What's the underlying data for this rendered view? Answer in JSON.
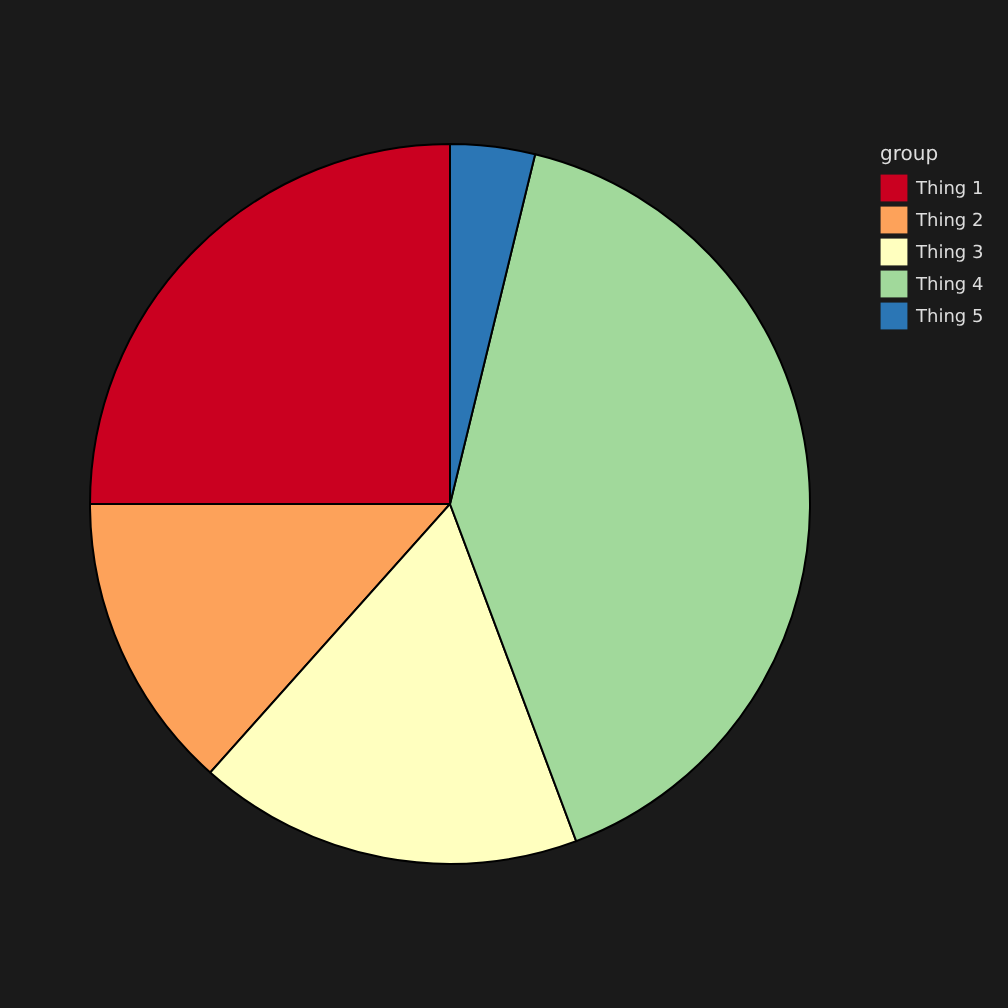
{
  "chart_data": {
    "type": "pie",
    "legend_title": "group",
    "legend": "right",
    "categories": [
      "Thing 1",
      "Thing 2",
      "Thing 3",
      "Thing 4",
      "Thing 5"
    ],
    "values": [
      25,
      13.4,
      17.3,
      40.5,
      3.8
    ],
    "colors": [
      "#ca0020",
      "#fda25a",
      "#ffffbf",
      "#a1d99b",
      "#2b76b5"
    ]
  }
}
